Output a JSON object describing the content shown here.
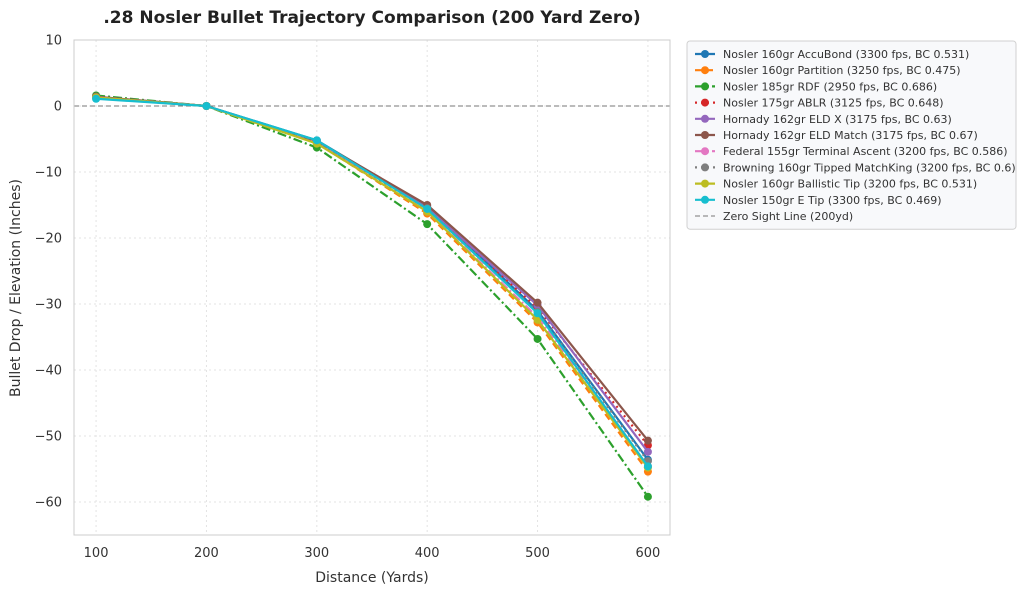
{
  "chart_data": {
    "type": "line",
    "title": ".28 Nosler Bullet Trajectory Comparison (200 Yard Zero)",
    "xlabel": "Distance (Yards)",
    "ylabel": "Bullet Drop / Elevation (Inches)",
    "x": [
      100,
      200,
      300,
      400,
      500,
      600
    ],
    "xlim": [
      80,
      620
    ],
    "ylim": [
      -65,
      10
    ],
    "xticks": [
      100,
      200,
      300,
      400,
      500,
      600
    ],
    "yticks": [
      10,
      0,
      -10,
      -20,
      -30,
      -40,
      -50,
      -60
    ],
    "grid": true,
    "legend_position": "outside-top-right",
    "series": [
      {
        "name": "Nosler 160gr AccuBond (3300 fps, BC 0.531)",
        "color": "#1f77b4",
        "dash": "solid",
        "values": [
          1.2,
          0,
          -5.2,
          -15.2,
          -31.0,
          -53.6
        ]
      },
      {
        "name": "Nosler 160gr Partition (3250 fps, BC 0.475)",
        "color": "#ff7f0e",
        "dash": "dashed",
        "values": [
          1.3,
          0,
          -5.6,
          -16.3,
          -32.8,
          -55.4
        ]
      },
      {
        "name": "Nosler 185gr RDF (2950 fps, BC 0.686)",
        "color": "#2ca02c",
        "dash": "dashdot",
        "values": [
          1.6,
          0,
          -6.3,
          -17.9,
          -35.3,
          -59.2
        ]
      },
      {
        "name": "Nosler 175gr ABLR (3125 fps, BC 0.648)",
        "color": "#d62728",
        "dash": "dotted",
        "values": [
          1.4,
          0,
          -5.5,
          -15.6,
          -30.6,
          -51.4
        ]
      },
      {
        "name": "Hornady 162gr ELD X (3175 fps, BC 0.63)",
        "color": "#9467bd",
        "dash": "solid",
        "values": [
          1.4,
          0,
          -5.4,
          -15.4,
          -30.2,
          -52.4
        ]
      },
      {
        "name": "Hornady 162gr ELD Match (3175 fps, BC 0.67)",
        "color": "#8c564b",
        "dash": "solid",
        "values": [
          1.4,
          0,
          -5.3,
          -15.0,
          -29.8,
          -50.7
        ]
      },
      {
        "name": "Federal 155gr Terminal Ascent (3200 fps, BC 0.586)",
        "color": "#e377c2",
        "dash": "dashdot",
        "values": [
          1.3,
          0,
          -5.6,
          -16.0,
          -32.0,
          -54.6
        ]
      },
      {
        "name": "Browning 160gr Tipped MatchKing (3200 fps, BC 0.6)",
        "color": "#7f7f7f",
        "dash": "dotted",
        "values": [
          1.3,
          0,
          -5.4,
          -15.5,
          -31.2,
          -53.8
        ]
      },
      {
        "name": "Nosler 160gr Ballistic Tip (3200 fps, BC 0.531)",
        "color": "#bcbd22",
        "dash": "solid",
        "values": [
          1.3,
          0,
          -5.7,
          -16.0,
          -32.4,
          -54.8
        ]
      },
      {
        "name": "Nosler 150gr E Tip (3300 fps, BC 0.469)",
        "color": "#17becf",
        "dash": "solid",
        "values": [
          1.1,
          0,
          -5.2,
          -15.6,
          -31.4,
          -54.6
        ]
      }
    ],
    "reference_line": {
      "name": "Zero Sight Line (200yd)",
      "y": 0,
      "color": "#777777",
      "dash": "dashed"
    }
  }
}
